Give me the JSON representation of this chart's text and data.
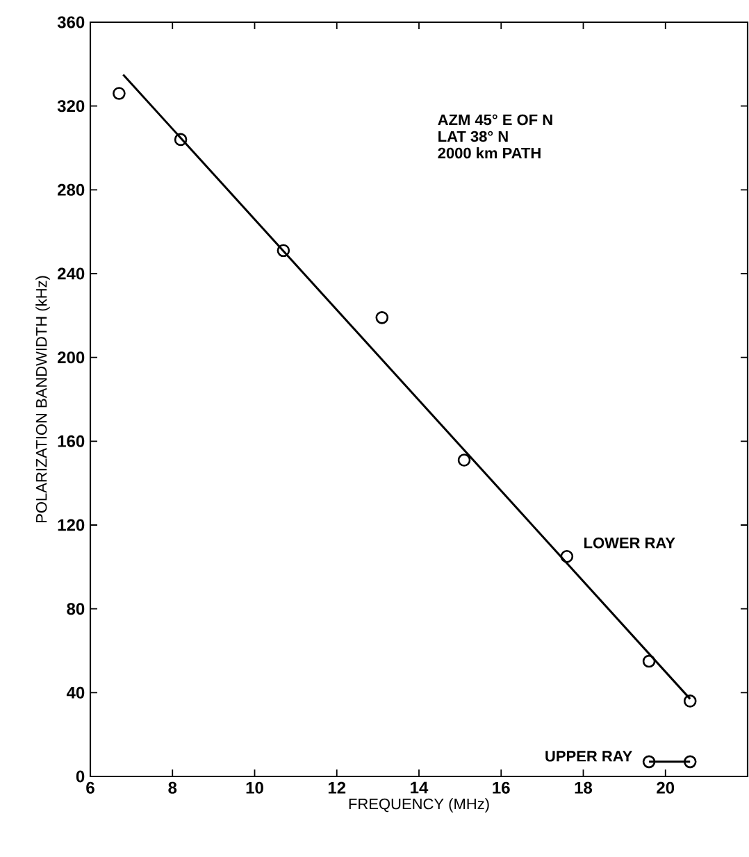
{
  "chart_data": {
    "type": "scatter",
    "xlabel": "FREQUENCY (MHz)",
    "ylabel": "POLARIZATION BANDWIDTH (kHz)",
    "annotations": [
      "AZM 45° E OF N",
      "LAT 38° N",
      "2000 km PATH"
    ],
    "xlim": [
      6,
      22
    ],
    "xticks": [
      6,
      8,
      10,
      12,
      14,
      16,
      18,
      20
    ],
    "ylim": [
      0,
      360
    ],
    "yticks": [
      0,
      40,
      80,
      120,
      160,
      200,
      240,
      280,
      320,
      360
    ],
    "grid": false,
    "legend": false,
    "marker": "circle",
    "series": [
      {
        "name": "LOWER RAY",
        "color": "#000000",
        "x": [
          6.7,
          8.2,
          10.7,
          13.1,
          15.1,
          17.6,
          19.6,
          20.6
        ],
        "values": [
          326,
          304,
          251,
          219,
          151,
          105,
          55,
          36
        ]
      },
      {
        "type": "line",
        "color": "#000000",
        "marker": "none",
        "x": [
          6.8,
          20.6
        ],
        "values": [
          335,
          37
        ]
      },
      {
        "name": "UPPER RAY",
        "type": "line",
        "color": "#000000",
        "x": [
          19.6,
          20.6
        ],
        "values": [
          7,
          7
        ]
      }
    ]
  }
}
